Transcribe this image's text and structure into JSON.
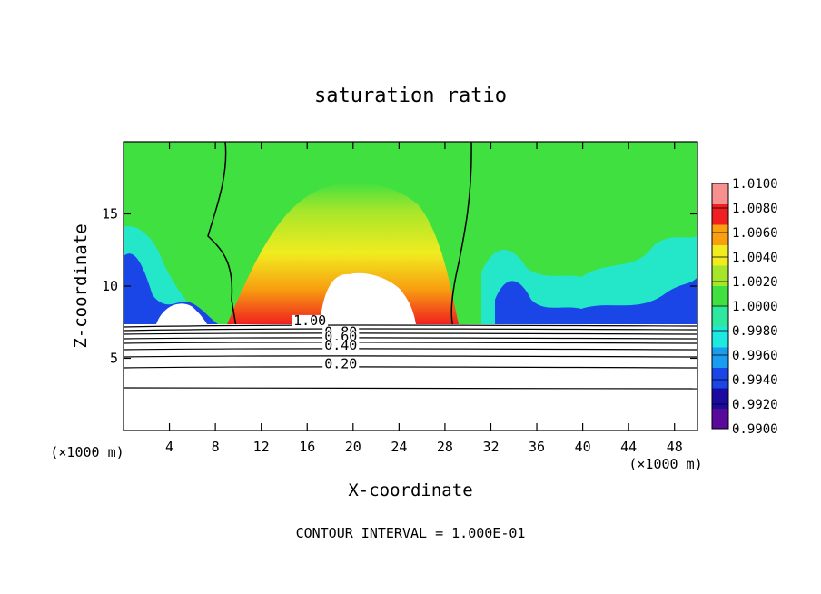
{
  "chart_data": {
    "type": "heatmap",
    "title": "saturation ratio",
    "xlabel": "X-coordinate",
    "ylabel": "Z-coordinate",
    "x_unit": "(×1000 m)",
    "x_unit_right": "(×1000 m)",
    "footer": "CONTOUR INTERVAL = 1.000E-01",
    "xlim": [
      0,
      50
    ],
    "ylim": [
      0,
      20
    ],
    "x_ticks": [
      4,
      8,
      12,
      16,
      20,
      24,
      28,
      32,
      36,
      40,
      44,
      48
    ],
    "y_ticks": [
      5,
      10,
      15
    ],
    "x_tick_labels": [
      "4",
      "8",
      "12",
      "16",
      "20",
      "24",
      "28",
      "32",
      "36",
      "40",
      "44",
      "48"
    ],
    "y_tick_labels": [
      "5",
      "10",
      "15"
    ],
    "colorbar": {
      "min": 0.99,
      "max": 1.01,
      "levels": [
        "1.0100",
        "1.0080",
        "1.0060",
        "1.0040",
        "1.0020",
        "1.0000",
        "0.9980",
        "0.9960",
        "0.9940",
        "0.9920",
        "0.9900"
      ],
      "colors": [
        "#5a0a9a",
        "#1a0aa0",
        "#1a46e8",
        "#1a9cf0",
        "#1ee8e0",
        "#2ee8a0",
        "#40e040",
        "#a6e62a",
        "#f0ec20",
        "#f8a010",
        "#f02020",
        "#f89090"
      ]
    },
    "contour_labels": [
      {
        "text": "1.00",
        "x": 14.8,
        "z": 7.3
      },
      {
        "text": "0.80",
        "x": 17.5,
        "z": 6.5
      },
      {
        "text": "0.60",
        "x": 17.5,
        "z": 6.2
      },
      {
        "text": "0.40",
        "x": 17.5,
        "z": 5.6
      },
      {
        "text": "0.20",
        "x": 17.5,
        "z": 4.3
      }
    ]
  }
}
